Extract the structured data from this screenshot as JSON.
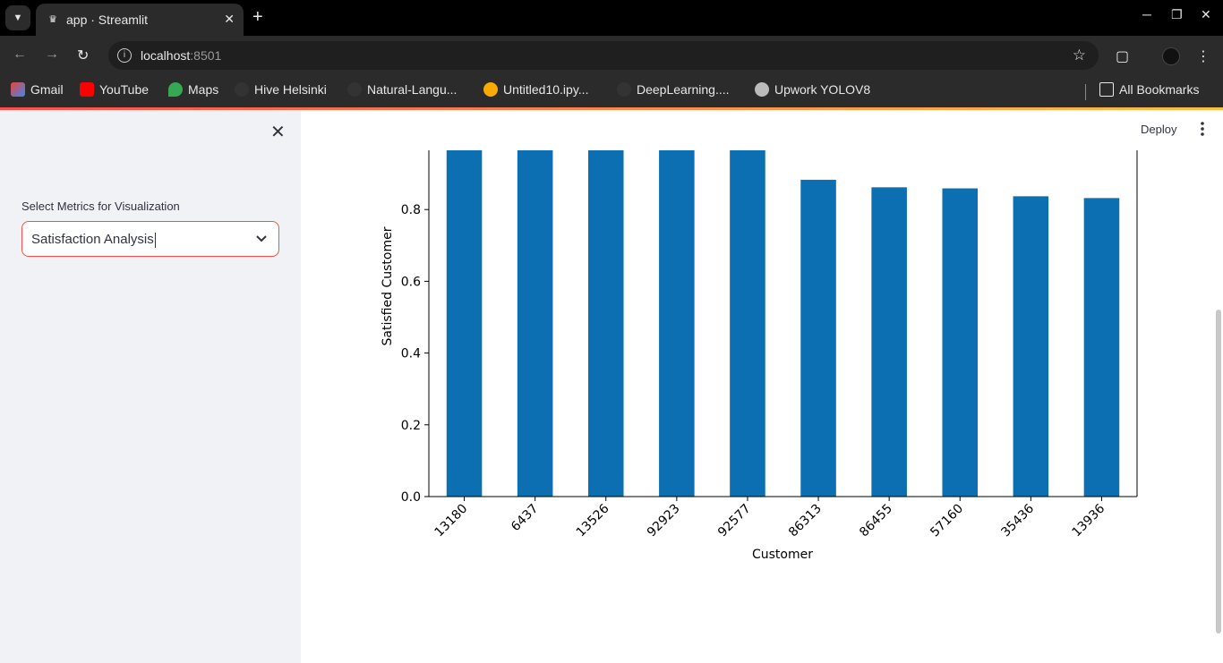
{
  "browser": {
    "tab_title": "app · Streamlit",
    "url_host": "localhost",
    "url_port": ":8501",
    "bookmarks": [
      "Gmail",
      "YouTube",
      "Maps",
      "Hive Helsinki",
      "Natural-Langu...",
      "Untitled10.ipy...",
      "DeepLearning....",
      "Upwork YOLOV8"
    ],
    "all_bookmarks": "All Bookmarks"
  },
  "sidebar": {
    "select_label": "Select Metrics for Visualization",
    "select_value": "Satisfaction Analysis"
  },
  "header": {
    "deploy_label": "Deploy"
  },
  "colors": {
    "bar": "#0b6fb1",
    "accent": "#ff4b4b"
  },
  "chart_data": {
    "type": "bar",
    "categories": [
      "13180",
      "6437",
      "13526",
      "92923",
      "92577",
      "86313",
      "86455",
      "57160",
      "35436",
      "13936"
    ],
    "values": [
      1.0,
      1.0,
      1.0,
      1.0,
      1.0,
      0.883,
      0.862,
      0.859,
      0.837,
      0.832
    ],
    "xlabel": "Customer",
    "ylabel": "Satisfied Customer",
    "yticks": [
      "0.0",
      "0.2",
      "0.4",
      "0.6",
      "0.8"
    ],
    "ylim": [
      0,
      1.0
    ]
  }
}
